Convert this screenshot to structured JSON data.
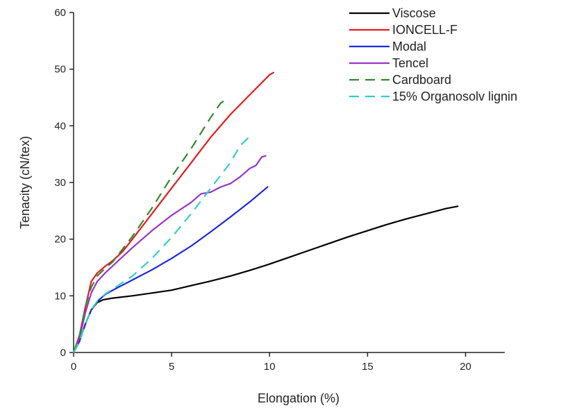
{
  "chart_data": {
    "type": "line",
    "xlabel": "Elongation (%)",
    "ylabel": "Tenacity (cN/tex)",
    "xlim": [
      0,
      22
    ],
    "ylim": [
      0,
      60
    ],
    "x_ticks": [
      "0",
      "5",
      "10",
      "15",
      "20"
    ],
    "y_ticks": [
      "0",
      "10",
      "20",
      "30",
      "40",
      "50",
      "60"
    ],
    "grid": false,
    "legend_position": "top-right",
    "series": [
      {
        "name": "Viscose",
        "color": "#000000",
        "dash": "solid",
        "x": [
          0,
          0.3,
          0.6,
          0.9,
          1.2,
          1.5,
          2,
          3,
          4,
          5,
          6,
          7,
          8,
          9,
          10,
          11,
          12,
          13,
          14,
          15,
          16,
          17,
          18,
          19,
          19.6
        ],
        "y": [
          0,
          2,
          5,
          7.5,
          8.8,
          9.3,
          9.6,
          10,
          10.5,
          11,
          11.8,
          12.6,
          13.5,
          14.5,
          15.6,
          16.8,
          18,
          19.2,
          20.4,
          21.5,
          22.6,
          23.6,
          24.5,
          25.4,
          25.8
        ]
      },
      {
        "name": "IONCELL-F",
        "color": "#e41a1c",
        "dash": "solid",
        "x": [
          0,
          0.3,
          0.6,
          0.9,
          1.2,
          1.6,
          2,
          2.5,
          3,
          4,
          5,
          6,
          7,
          8,
          9,
          10,
          10.2
        ],
        "y": [
          0,
          3,
          8,
          12.5,
          14,
          15.2,
          16.2,
          17.8,
          20,
          24.5,
          29,
          33.5,
          38,
          42,
          45.5,
          49,
          49.4
        ]
      },
      {
        "name": "Modal",
        "color": "#1a28e0",
        "dash": "solid",
        "x": [
          0,
          0.3,
          0.6,
          0.9,
          1.2,
          1.6,
          2,
          3,
          4,
          5,
          6,
          7,
          8,
          9,
          9.9
        ],
        "y": [
          0,
          2,
          5,
          7.5,
          9,
          10.2,
          11,
          12.8,
          14.6,
          16.6,
          18.8,
          21.3,
          23.9,
          26.6,
          29.2
        ]
      },
      {
        "name": "Tencel",
        "color": "#9932cc",
        "dash": "solid",
        "x": [
          0,
          0.3,
          0.6,
          0.9,
          1.2,
          1.6,
          2,
          3,
          4,
          5,
          6,
          6.5,
          7,
          7.5,
          8,
          8.5,
          9,
          9.3,
          9.6,
          9.8
        ],
        "y": [
          0,
          2.5,
          7,
          10.5,
          12.5,
          14,
          15.3,
          18.5,
          21.5,
          24.2,
          26.5,
          28,
          28.3,
          29.2,
          29.8,
          31,
          32.5,
          33,
          34.5,
          34.7
        ]
      },
      {
        "name": "Cardboard",
        "color": "#2e8b2e",
        "dash": "dashed",
        "x": [
          0,
          0.3,
          0.6,
          0.9,
          1.2,
          1.6,
          2,
          3,
          4,
          5,
          6,
          7,
          7.5,
          7.9
        ],
        "y": [
          0,
          3,
          8,
          11.5,
          13.5,
          14.8,
          16,
          20.5,
          25.5,
          31,
          36,
          41.5,
          44,
          44.9
        ]
      },
      {
        "name": "15% Organosolv lignin",
        "color": "#33cccc",
        "dash": "dashed",
        "x": [
          0,
          0.3,
          0.6,
          0.9,
          1.2,
          1.6,
          2,
          3,
          4,
          5,
          6,
          7,
          8,
          8.5,
          9.1
        ],
        "y": [
          0,
          2,
          5,
          7.5,
          9,
          10.3,
          11.2,
          13.5,
          16.6,
          20.3,
          24.5,
          29,
          33.5,
          36.5,
          38.5
        ]
      }
    ]
  }
}
